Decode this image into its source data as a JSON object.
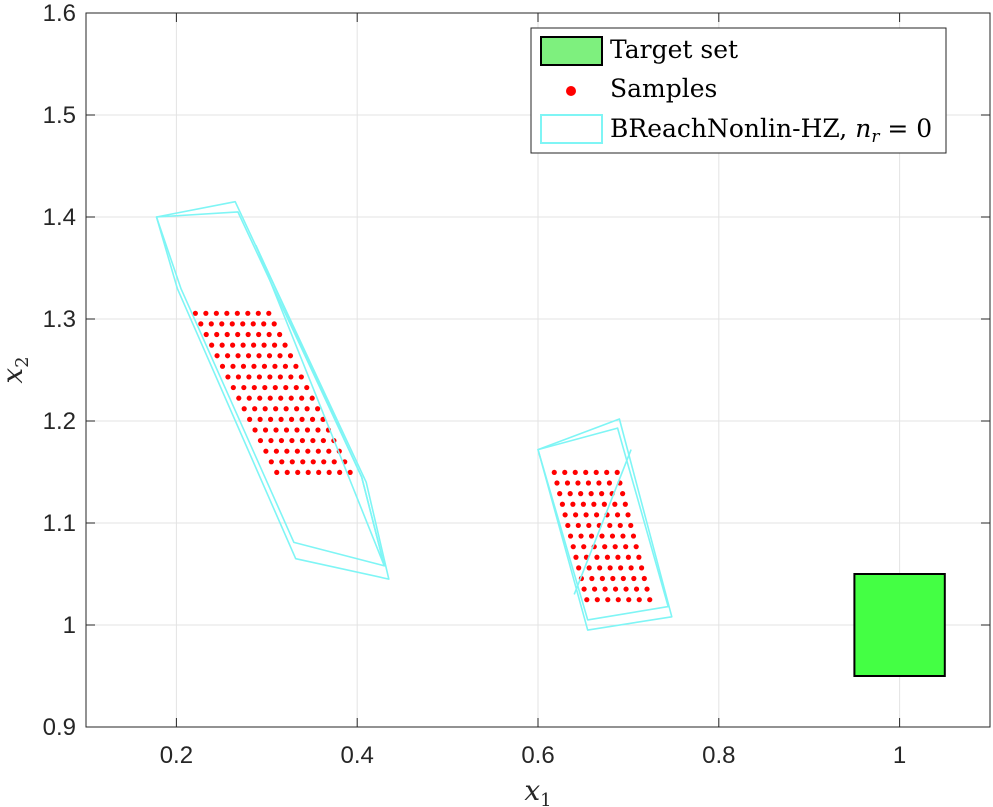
{
  "chart_data": {
    "type": "scatter",
    "xlabel": "x",
    "xlabel_sub": "1",
    "ylabel": "x",
    "ylabel_sub": "2",
    "xlim": [
      0.1,
      1.1
    ],
    "ylim": [
      0.9,
      1.6
    ],
    "xticks": [
      0.2,
      0.4,
      0.6,
      0.8,
      1
    ],
    "xtick_labels": [
      "0.2",
      "0.4",
      "0.6",
      "0.8",
      "1"
    ],
    "yticks": [
      0.9,
      1,
      1.1,
      1.2,
      1.3,
      1.4,
      1.5,
      1.6
    ],
    "ytick_labels": [
      "0.9",
      "1",
      "1.1",
      "1.2",
      "1.3",
      "1.4",
      "1.5",
      "1.6"
    ],
    "grid": true,
    "legend_position": "top-right",
    "legend": [
      {
        "label": "Target set",
        "style": "patch"
      },
      {
        "label": "Samples",
        "style": "marker"
      },
      {
        "label": "BReachNonlin-HZ, ",
        "math": "n",
        "math_sub": "r",
        "math_rest": " = 0",
        "style": "outline"
      }
    ],
    "colors": {
      "target_fill": "#44ff44",
      "target_edge": "#000000",
      "samples": "#ff0000",
      "reach": "#7ff5f5",
      "grid": "#e3e3e3"
    },
    "target_set": {
      "x": [
        0.95,
        1.05
      ],
      "y": [
        0.95,
        1.05
      ]
    },
    "reach_polygons": [
      [
        [
          0.178,
          1.4
        ],
        [
          0.265,
          1.415
        ],
        [
          0.41,
          1.14
        ],
        [
          0.435,
          1.045
        ],
        [
          0.332,
          1.065
        ],
        [
          0.201,
          1.33
        ]
      ],
      [
        [
          0.178,
          1.4
        ],
        [
          0.268,
          1.405
        ],
        [
          0.405,
          1.145
        ],
        [
          0.43,
          1.058
        ],
        [
          0.33,
          1.081
        ],
        [
          0.205,
          1.33
        ]
      ],
      [
        [
          0.288,
          1.372
        ],
        [
          0.405,
          1.145
        ],
        [
          0.43,
          1.058
        ]
      ],
      [
        [
          0.6,
          1.172
        ],
        [
          0.69,
          1.202
        ],
        [
          0.748,
          1.008
        ],
        [
          0.655,
          0.995
        ]
      ],
      [
        [
          0.6,
          1.172
        ],
        [
          0.688,
          1.193
        ],
        [
          0.744,
          1.018
        ],
        [
          0.655,
          1.005
        ]
      ],
      [
        [
          0.703,
          1.172
        ],
        [
          0.64,
          1.03
        ]
      ]
    ],
    "sample_clusters": [
      {
        "rows_y": [
          1.3056,
          1.2952,
          1.2848,
          1.2744,
          1.264,
          1.2536,
          1.2432,
          1.2328,
          1.2224,
          1.212,
          1.2016,
          1.1912,
          1.1808,
          1.1704,
          1.16,
          1.1496
        ],
        "row_x_start": [
          0.221,
          0.227,
          0.233,
          0.239,
          0.245,
          0.251,
          0.257,
          0.263,
          0.269,
          0.275,
          0.281,
          0.287,
          0.293,
          0.299,
          0.305,
          0.311
        ],
        "count": 8,
        "dx": 0.0116
      },
      {
        "rows_y": [
          1.1496,
          1.1392,
          1.1288,
          1.1184,
          1.108,
          1.0976,
          1.0872,
          1.0768,
          1.0664,
          1.056,
          1.0456,
          1.0352,
          1.0248
        ],
        "row_x_start": [
          0.618,
          0.621,
          0.624,
          0.627,
          0.63,
          0.633,
          0.636,
          0.639,
          0.642,
          0.645,
          0.648,
          0.651,
          0.654
        ],
        "count": 7,
        "dx": 0.0116
      }
    ]
  }
}
